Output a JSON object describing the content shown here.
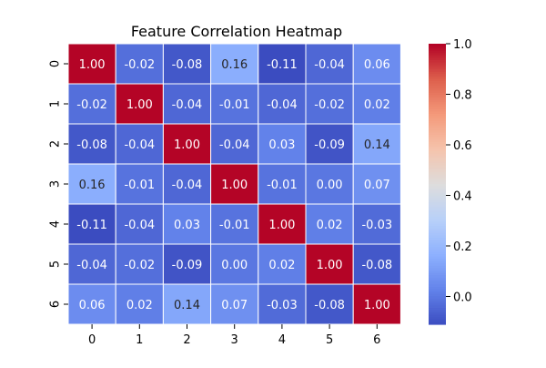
{
  "chart_data": {
    "type": "heatmap",
    "title": "Feature Correlation Heatmap",
    "xlabel": "",
    "ylabel": "",
    "x_categories": [
      "0",
      "1",
      "2",
      "3",
      "4",
      "5",
      "6"
    ],
    "y_categories": [
      "0",
      "1",
      "2",
      "3",
      "4",
      "5",
      "6"
    ],
    "values": [
      [
        1.0,
        -0.02,
        -0.08,
        0.16,
        -0.11,
        -0.04,
        0.06
      ],
      [
        -0.02,
        1.0,
        -0.04,
        -0.01,
        -0.04,
        -0.02,
        0.02
      ],
      [
        -0.08,
        -0.04,
        1.0,
        -0.04,
        0.03,
        -0.09,
        0.14
      ],
      [
        0.16,
        -0.01,
        -0.04,
        1.0,
        -0.01,
        0.0,
        0.07
      ],
      [
        -0.11,
        -0.04,
        0.03,
        -0.01,
        1.0,
        0.02,
        -0.03
      ],
      [
        -0.04,
        -0.02,
        -0.09,
        0.0,
        0.02,
        1.0,
        -0.08
      ],
      [
        0.06,
        0.02,
        0.14,
        0.07,
        -0.03,
        -0.08,
        1.0
      ]
    ],
    "colormap": "coolwarm",
    "color_range": [
      -0.11,
      1.0
    ],
    "colorbar_ticks": [
      0.0,
      0.2,
      0.4,
      0.6,
      0.8,
      1.0
    ],
    "colorbar_tick_labels": [
      "0.0",
      "0.2",
      "0.4",
      "0.6",
      "0.8",
      "1.0"
    ],
    "annotation_format": "2 decimals",
    "cell_border_color": "#ffffff",
    "grid": false,
    "colorbar_placement": "right"
  }
}
